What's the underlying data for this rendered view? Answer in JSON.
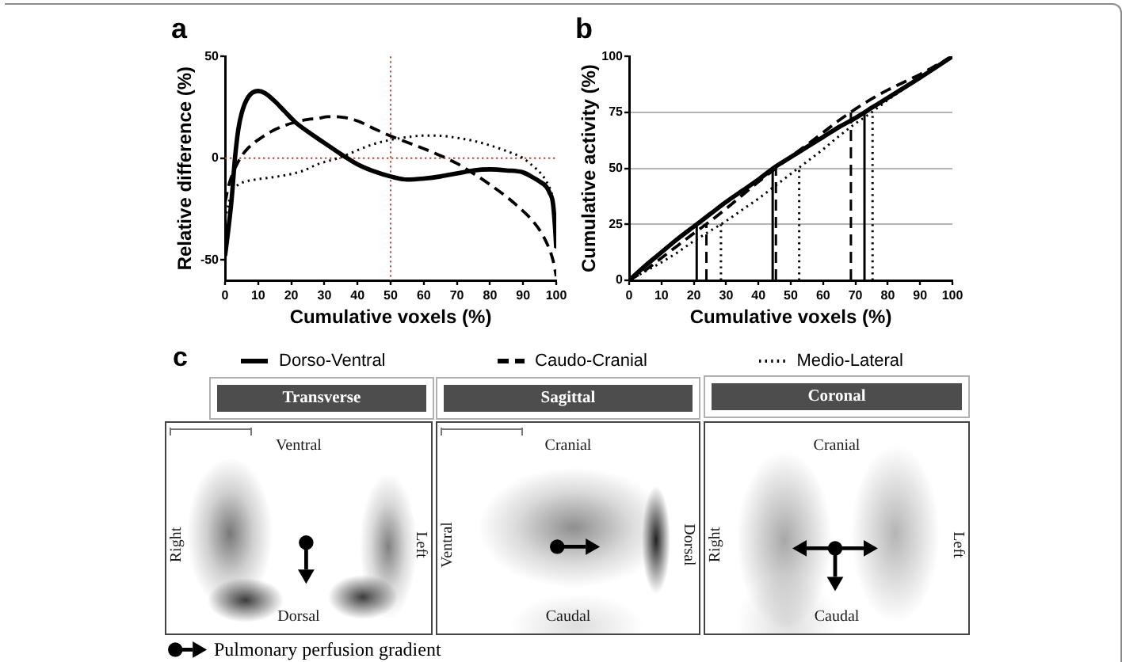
{
  "chart_data": [
    {
      "type": "line",
      "title": "a",
      "xlabel": "Cumulative voxels (%)",
      "ylabel": "Relative difference (%)",
      "xlim": [
        0,
        100
      ],
      "xticks": [
        0,
        10,
        20,
        30,
        40,
        50,
        60,
        70,
        80,
        90,
        100
      ],
      "ylim": [
        -60,
        50
      ],
      "yticks": [
        -50,
        0,
        50
      ],
      "legend": "bottom",
      "marker": "none",
      "ref_lines": [
        {
          "axis": "x",
          "value": 50,
          "color": "#b0503a",
          "line_style": "dotted"
        },
        {
          "axis": "y",
          "value": 0,
          "color": "#b0503a",
          "line_style": "dotted"
        }
      ],
      "series": [
        {
          "name": "Dorso-Ventral",
          "color": "#000000",
          "line_style": "solid",
          "x": [
            0,
            1,
            2,
            3,
            4,
            5,
            7,
            10,
            12,
            15,
            18,
            21,
            25,
            30,
            35,
            40,
            45,
            50,
            55,
            60,
            65,
            70,
            75,
            80,
            85,
            90,
            93,
            95,
            97,
            98,
            99,
            99.6,
            100
          ],
          "values": [
            -48,
            -35,
            -20,
            0,
            14,
            22,
            30,
            33,
            32,
            28,
            23,
            18,
            13,
            7.5,
            2,
            -3,
            -6.5,
            -9,
            -10.5,
            -10,
            -9,
            -7.5,
            -6,
            -5.5,
            -6,
            -7,
            -9.5,
            -11.5,
            -14,
            -17,
            -22,
            -33,
            -44
          ]
        },
        {
          "name": "Caudo-Cranial",
          "color": "#000000",
          "line_style": "dashed",
          "x": [
            0,
            1,
            3,
            5,
            7,
            10,
            15,
            21,
            25,
            28,
            31,
            35,
            40,
            45,
            50,
            55,
            60,
            65,
            70,
            75,
            80,
            85,
            90,
            93,
            96,
            98,
            99,
            100
          ],
          "values": [
            -22,
            -14,
            -5,
            1,
            5,
            9,
            14,
            17.6,
            19,
            19.5,
            20.4,
            20.2,
            18.3,
            14.5,
            10.9,
            7.8,
            4.7,
            1.3,
            -2.6,
            -7.5,
            -13,
            -19,
            -26,
            -31,
            -38,
            -45,
            -50,
            -58
          ]
        },
        {
          "name": "Medio-Lateral",
          "color": "#000000",
          "line_style": "dotted",
          "x": [
            0,
            1,
            2,
            4,
            6,
            10,
            16,
            23,
            28,
            35,
            40,
            45,
            50,
            55,
            60,
            65,
            70,
            75,
            80,
            85,
            90,
            93,
            95.5,
            97.5,
            99,
            99.6,
            100
          ],
          "values": [
            -30,
            -23,
            -17,
            -13,
            -11.6,
            -10.3,
            -9,
            -6.5,
            -3,
            0.5,
            3.9,
            7,
            9,
            10.3,
            11.1,
            11,
            10,
            8.5,
            6.3,
            3.5,
            0,
            -3.9,
            -7.8,
            -13,
            -21,
            -33,
            -45
          ]
        }
      ]
    },
    {
      "type": "line",
      "title": "b",
      "xlabel": "Cumulative voxels (%)",
      "ylabel": "Cumulative activity (%)",
      "xlim": [
        0,
        100
      ],
      "xticks": [
        0,
        10,
        20,
        30,
        40,
        50,
        60,
        70,
        80,
        90,
        100
      ],
      "ylim": [
        0,
        100
      ],
      "yticks": [
        0,
        25,
        50,
        75,
        100
      ],
      "grid": "y",
      "marker": "none",
      "series": [
        {
          "color": "#000000",
          "line_style": "solid",
          "x": [
            0,
            5,
            10,
            15,
            20,
            25,
            30,
            35,
            40,
            45,
            50,
            55,
            60,
            65,
            70,
            75,
            80,
            85,
            90,
            95,
            100
          ],
          "values": [
            0,
            6.5,
            12.5,
            18.5,
            24,
            29.5,
            35,
            40,
            45,
            50.5,
            55,
            59.5,
            64,
            68.5,
            72.5,
            77,
            81.5,
            86,
            90.5,
            95.2,
            100
          ]
        },
        {
          "color": "#000000",
          "line_style": "dashed",
          "x": [
            0,
            5,
            10,
            15,
            20,
            25,
            30,
            35,
            40,
            45,
            50,
            55,
            60,
            65,
            70,
            75,
            80,
            85,
            90,
            95,
            100
          ],
          "values": [
            0,
            4.5,
            10,
            15.5,
            21,
            26.3,
            32,
            38,
            44,
            49.6,
            55.2,
            60.5,
            66,
            71.5,
            76.5,
            81,
            85,
            88.5,
            92,
            96,
            100
          ]
        },
        {
          "color": "#000000",
          "line_style": "dotted",
          "x": [
            0,
            5,
            10,
            15,
            20,
            25,
            30,
            35,
            40,
            45,
            50,
            55,
            60,
            65,
            70,
            75,
            80,
            85,
            90,
            95,
            100
          ],
          "values": [
            0,
            4,
            8,
            12.5,
            17.5,
            22,
            26.5,
            31.5,
            36.5,
            42,
            47.5,
            53,
            58.5,
            64.5,
            70,
            75,
            80.5,
            85.5,
            90.5,
            95,
            100
          ]
        },
        {
          "color": "#000000",
          "line_style": "solid",
          "x": [
            20.9,
            20.9
          ],
          "values": [
            0,
            25
          ]
        },
        {
          "color": "#000000",
          "line_style": "solid",
          "x": [
            44.4,
            44.4
          ],
          "values": [
            0,
            50
          ]
        },
        {
          "color": "#000000",
          "line_style": "solid",
          "x": [
            72.8,
            72.8
          ],
          "values": [
            0,
            75
          ]
        },
        {
          "color": "#000000",
          "line_style": "dashed",
          "x": [
            23.9,
            23.9
          ],
          "values": [
            0,
            25
          ]
        },
        {
          "color": "#000000",
          "line_style": "dashed",
          "x": [
            45.4,
            45.4
          ],
          "values": [
            0,
            50
          ]
        },
        {
          "color": "#000000",
          "line_style": "dashed",
          "x": [
            68.6,
            68.6
          ],
          "values": [
            0,
            75
          ]
        },
        {
          "color": "#000000",
          "line_style": "dotted",
          "x": [
            28.4,
            28.4
          ],
          "values": [
            0,
            25
          ]
        },
        {
          "color": "#000000",
          "line_style": "dotted",
          "x": [
            52.6,
            52.6
          ],
          "values": [
            0,
            50
          ]
        },
        {
          "color": "#000000",
          "line_style": "dotted",
          "x": [
            75.3,
            75.3
          ],
          "values": [
            0,
            75
          ]
        }
      ]
    },
    {
      "type": "other",
      "title": "c",
      "categories": [
        "Transverse",
        "Sagittal",
        "Coronal"
      ],
      "annotations": [
        "Ventral",
        "Dorsal",
        "Right",
        "Left",
        "Cranial",
        "Caudal",
        "Ventral",
        "Dorsal",
        "Cranial",
        "Caudal",
        "Right",
        "Left",
        "Pulmonary perfusion gradient"
      ]
    }
  ]
}
